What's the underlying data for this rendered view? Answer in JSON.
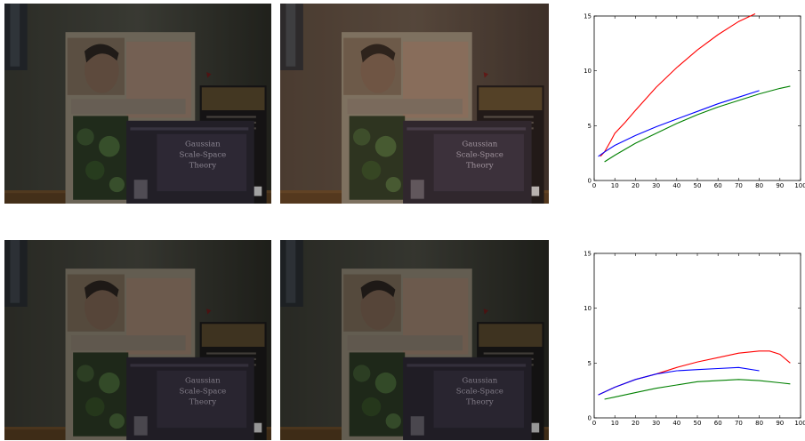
{
  "photos": [
    {
      "name": "photo-top-1",
      "book_title": "Gaussian Scale-Space Theory",
      "tone": "dark"
    },
    {
      "name": "photo-top-2",
      "book_title": "Gaussian Scale-Space Theory",
      "tone": "warm"
    },
    {
      "name": "photo-bottom-1",
      "book_title": "Gaussian Scale-Space Theory",
      "tone": "dark"
    },
    {
      "name": "photo-bottom-2",
      "book_title": "Gaussian Scale-Space Theory",
      "tone": "dark"
    }
  ],
  "chart_data": [
    {
      "type": "line",
      "title": "",
      "xlabel": "",
      "ylabel": "",
      "xlim": [
        0,
        100
      ],
      "ylim": [
        0,
        15
      ],
      "xticks": [
        0,
        10,
        20,
        30,
        40,
        50,
        60,
        70,
        80,
        90,
        100
      ],
      "yticks": [
        0,
        5,
        10,
        15
      ],
      "xtick_labels": [
        "0",
        "10",
        "20",
        "30",
        "40",
        "50",
        "60",
        "70",
        "80",
        "90",
        "100"
      ],
      "ytick_labels": [
        "0",
        "5",
        "10",
        "15"
      ],
      "grid": false,
      "series": [
        {
          "color": "#ff0000",
          "x": [
            3,
            5,
            8,
            10,
            15,
            20,
            30,
            40,
            50,
            60,
            70,
            78
          ],
          "y": [
            2.2,
            2.6,
            3.6,
            4.3,
            5.3,
            6.4,
            8.5,
            10.3,
            11.9,
            13.3,
            14.5,
            15.2
          ]
        },
        {
          "color": "#0000ff",
          "x": [
            2,
            5,
            10,
            20,
            30,
            40,
            50,
            60,
            70,
            80
          ],
          "y": [
            2.2,
            2.6,
            3.2,
            4.1,
            4.9,
            5.6,
            6.3,
            7.0,
            7.6,
            8.2
          ]
        },
        {
          "color": "#008000",
          "x": [
            5,
            10,
            20,
            30,
            40,
            50,
            60,
            70,
            80,
            90,
            95
          ],
          "y": [
            1.7,
            2.3,
            3.4,
            4.3,
            5.2,
            6.0,
            6.7,
            7.3,
            7.9,
            8.4,
            8.6
          ]
        }
      ]
    },
    {
      "type": "line",
      "title": "",
      "xlabel": "",
      "ylabel": "",
      "xlim": [
        0,
        100
      ],
      "ylim": [
        0,
        15
      ],
      "xticks": [
        0,
        10,
        20,
        30,
        40,
        50,
        60,
        70,
        80,
        90,
        100
      ],
      "yticks": [
        0,
        5,
        10,
        15
      ],
      "xtick_labels": [
        "0",
        "10",
        "20",
        "30",
        "40",
        "50",
        "60",
        "70",
        "80",
        "90",
        "100"
      ],
      "ytick_labels": [
        "0",
        "5",
        "10",
        "15"
      ],
      "grid": false,
      "series": [
        {
          "color": "#ff0000",
          "x": [
            2,
            10,
            20,
            30,
            40,
            50,
            60,
            70,
            80,
            85,
            90,
            95
          ],
          "y": [
            2.1,
            2.8,
            3.5,
            4.0,
            4.6,
            5.1,
            5.5,
            5.9,
            6.1,
            6.1,
            5.8,
            5.0
          ]
        },
        {
          "color": "#0000ff",
          "x": [
            2,
            10,
            20,
            30,
            40,
            50,
            60,
            70,
            80
          ],
          "y": [
            2.1,
            2.8,
            3.5,
            4.0,
            4.3,
            4.4,
            4.5,
            4.6,
            4.3
          ]
        },
        {
          "color": "#008000",
          "x": [
            5,
            10,
            20,
            30,
            40,
            50,
            60,
            70,
            80,
            90,
            95
          ],
          "y": [
            1.7,
            1.9,
            2.3,
            2.7,
            3.0,
            3.3,
            3.4,
            3.5,
            3.4,
            3.2,
            3.1
          ]
        }
      ]
    }
  ]
}
